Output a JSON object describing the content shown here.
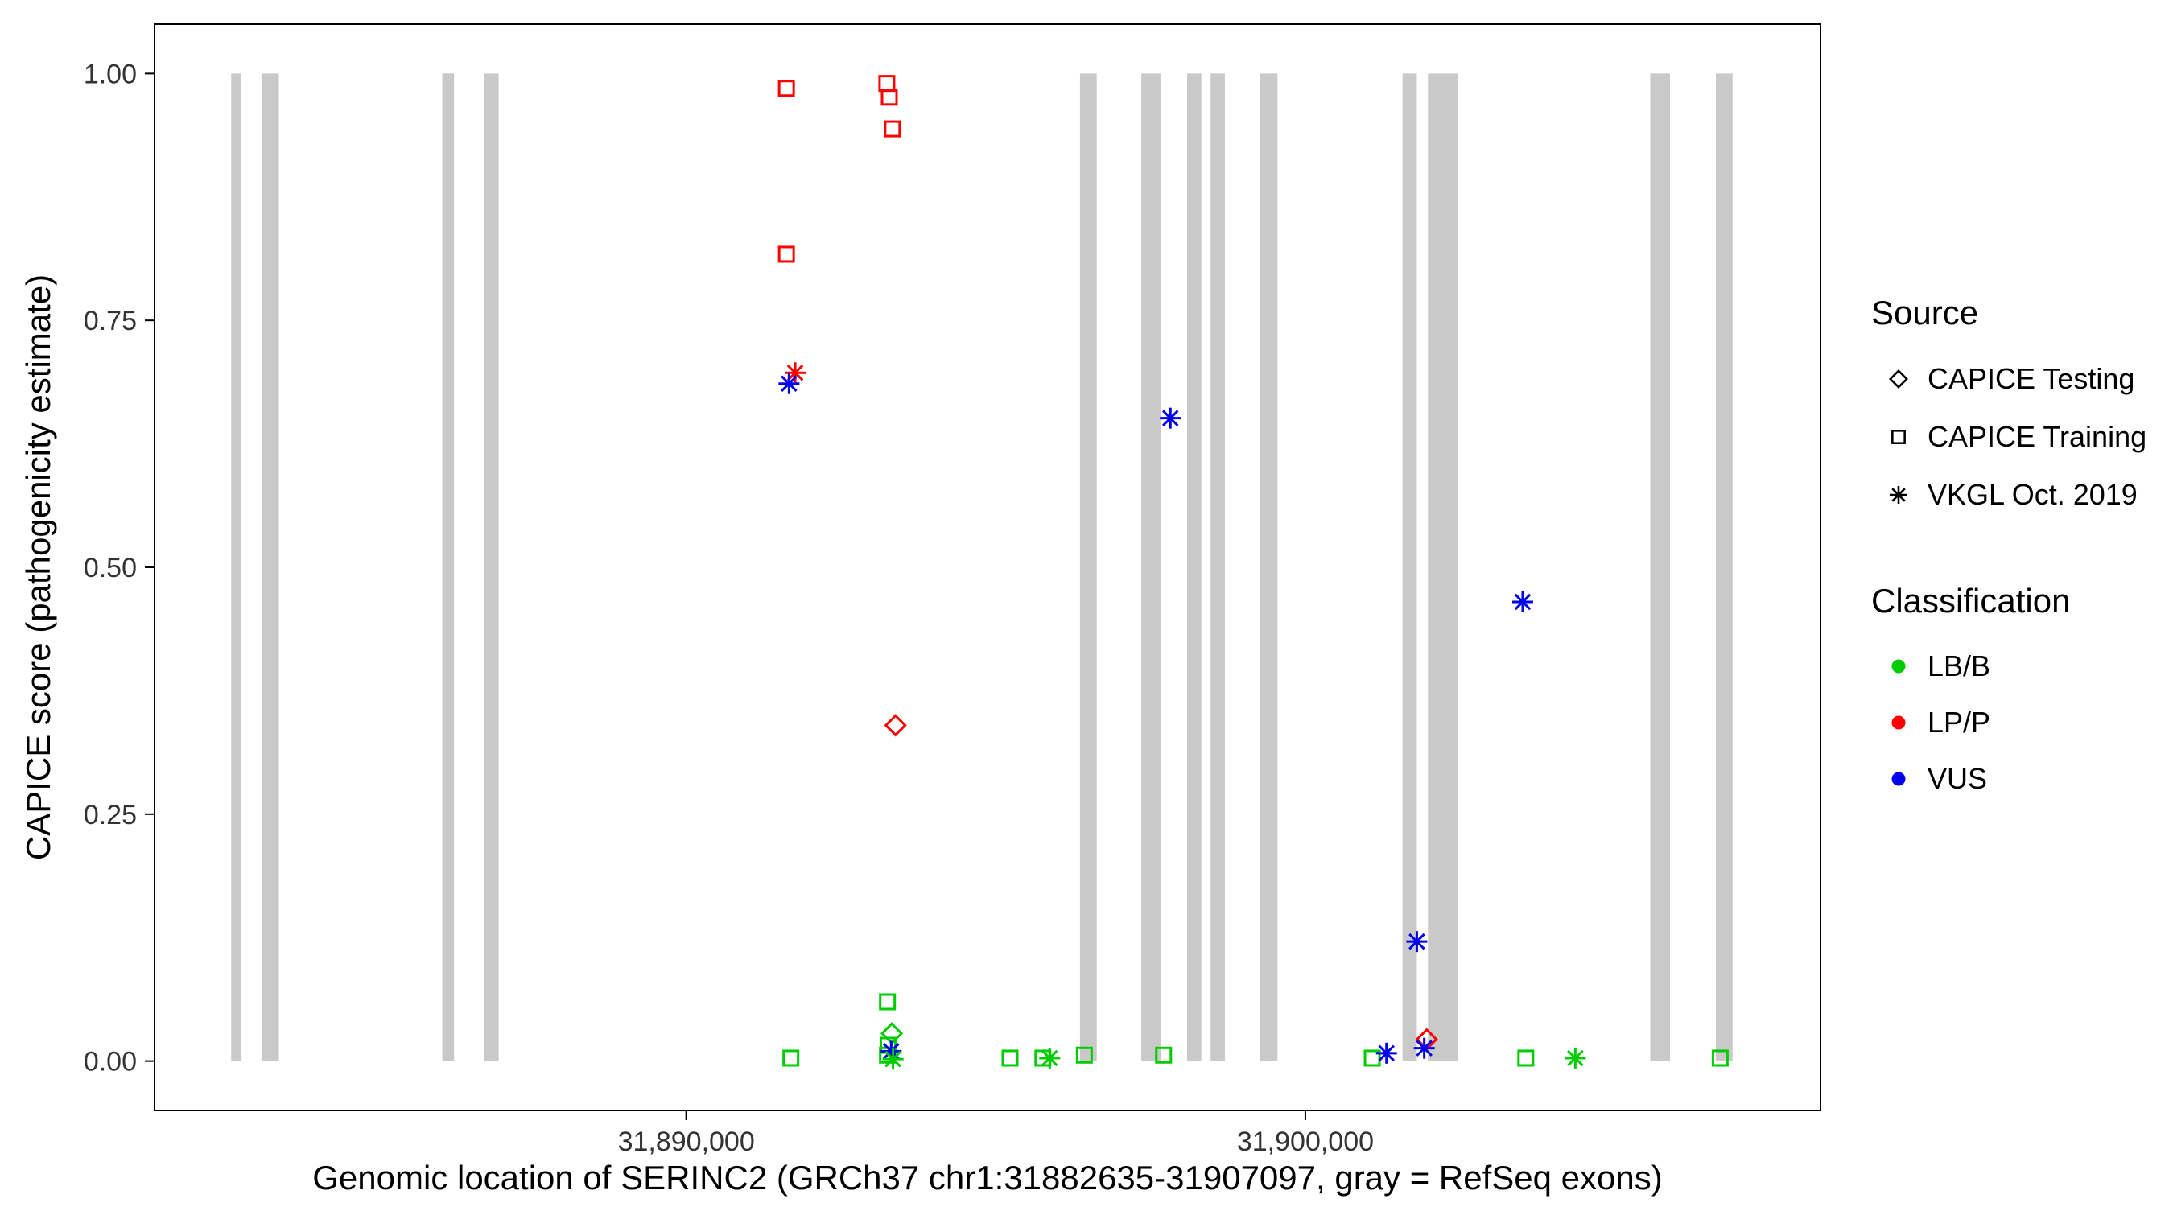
{
  "chart_data": {
    "type": "scatter",
    "title": "",
    "xlabel": "Genomic location of SERINC2 (GRCh37 chr1:31882635-31907097, gray = RefSeq exons)",
    "ylabel": "CAPICE score (pathogenicity estimate)",
    "xlim": [
      31881412,
      31908320
    ],
    "ylim": [
      -0.05,
      1.05
    ],
    "grid": "off",
    "x_ticks": [
      {
        "value": 31890000,
        "label": "31,890,000"
      },
      {
        "value": 31900000,
        "label": "31,900,000"
      }
    ],
    "y_ticks": [
      {
        "value": 0.0,
        "label": "0.00"
      },
      {
        "value": 0.25,
        "label": "0.25"
      },
      {
        "value": 0.5,
        "label": "0.50"
      },
      {
        "value": 0.75,
        "label": "0.75"
      },
      {
        "value": 1.0,
        "label": "1.00"
      }
    ],
    "exon_color": "#C9C9C9",
    "exons": [
      [
        31882650,
        31882810
      ],
      [
        31883140,
        31883420
      ],
      [
        31886060,
        31886250
      ],
      [
        31886740,
        31886970
      ],
      [
        31896360,
        31896630
      ],
      [
        31897350,
        31897660
      ],
      [
        31898090,
        31898320
      ],
      [
        31898470,
        31898700
      ],
      [
        31899260,
        31899550
      ],
      [
        31901570,
        31901800
      ],
      [
        31901980,
        31902470
      ],
      [
        31905570,
        31905890
      ],
      [
        31906630,
        31906900
      ]
    ],
    "sources": {
      "CAPICE Testing": "diamond",
      "CAPICE Training": "square",
      "VKGL Oct. 2019": "asterisk"
    },
    "classifications": {
      "LB/B": "#00CC00",
      "LP/P": "#FF0000",
      "VUS": "#0000EE"
    },
    "points": [
      {
        "x": 31891618,
        "y": 0.985,
        "source": "CAPICE Training",
        "classification": "LP/P"
      },
      {
        "x": 31891618,
        "y": 0.817,
        "source": "CAPICE Training",
        "classification": "LP/P"
      },
      {
        "x": 31893240,
        "y": 0.99,
        "source": "CAPICE Training",
        "classification": "LP/P"
      },
      {
        "x": 31893280,
        "y": 0.976,
        "source": "CAPICE Training",
        "classification": "LP/P"
      },
      {
        "x": 31893330,
        "y": 0.944,
        "source": "CAPICE Training",
        "classification": "LP/P"
      },
      {
        "x": 31891760,
        "y": 0.697,
        "source": "VKGL Oct. 2019",
        "classification": "LP/P"
      },
      {
        "x": 31891660,
        "y": 0.686,
        "source": "VKGL Oct. 2019",
        "classification": "VUS"
      },
      {
        "x": 31897820,
        "y": 0.651,
        "source": "VKGL Oct. 2019",
        "classification": "VUS"
      },
      {
        "x": 31903510,
        "y": 0.465,
        "source": "VKGL Oct. 2019",
        "classification": "VUS"
      },
      {
        "x": 31893380,
        "y": 0.34,
        "source": "CAPICE Testing",
        "classification": "LP/P"
      },
      {
        "x": 31901800,
        "y": 0.121,
        "source": "VKGL Oct. 2019",
        "classification": "VUS"
      },
      {
        "x": 31893250,
        "y": 0.06,
        "source": "CAPICE Training",
        "classification": "LB/B"
      },
      {
        "x": 31893320,
        "y": 0.028,
        "source": "CAPICE Testing",
        "classification": "LB/B"
      },
      {
        "x": 31893260,
        "y": 0.016,
        "source": "CAPICE Training",
        "classification": "LB/B"
      },
      {
        "x": 31893250,
        "y": 0.006,
        "source": "CAPICE Training",
        "classification": "LB/B"
      },
      {
        "x": 31893310,
        "y": 0.01,
        "source": "VKGL Oct. 2019",
        "classification": "VUS"
      },
      {
        "x": 31893340,
        "y": 0.002,
        "source": "VKGL Oct. 2019",
        "classification": "LB/B"
      },
      {
        "x": 31891690,
        "y": 0.003,
        "source": "CAPICE Training",
        "classification": "LB/B"
      },
      {
        "x": 31895230,
        "y": 0.003,
        "source": "CAPICE Training",
        "classification": "LB/B"
      },
      {
        "x": 31895760,
        "y": 0.003,
        "source": "CAPICE Training",
        "classification": "LB/B"
      },
      {
        "x": 31895870,
        "y": 0.003,
        "source": "VKGL Oct. 2019",
        "classification": "LB/B"
      },
      {
        "x": 31896430,
        "y": 0.006,
        "source": "CAPICE Training",
        "classification": "LB/B"
      },
      {
        "x": 31897710,
        "y": 0.006,
        "source": "CAPICE Training",
        "classification": "LB/B"
      },
      {
        "x": 31901080,
        "y": 0.003,
        "source": "CAPICE Training",
        "classification": "LB/B"
      },
      {
        "x": 31901310,
        "y": 0.008,
        "source": "VKGL Oct. 2019",
        "classification": "VUS"
      },
      {
        "x": 31901960,
        "y": 0.022,
        "source": "CAPICE Testing",
        "classification": "LP/P"
      },
      {
        "x": 31901920,
        "y": 0.013,
        "source": "VKGL Oct. 2019",
        "classification": "VUS"
      },
      {
        "x": 31903560,
        "y": 0.003,
        "source": "CAPICE Training",
        "classification": "LB/B"
      },
      {
        "x": 31904360,
        "y": 0.003,
        "source": "VKGL Oct. 2019",
        "classification": "LB/B"
      },
      {
        "x": 31906700,
        "y": 0.003,
        "source": "CAPICE Training",
        "classification": "LB/B"
      }
    ]
  },
  "legend": {
    "source_title": "Source",
    "source_items": [
      {
        "label": "CAPICE Testing",
        "shape": "diamond"
      },
      {
        "label": "CAPICE Training",
        "shape": "square"
      },
      {
        "label": "VKGL Oct. 2019",
        "shape": "asterisk"
      }
    ],
    "classification_title": "Classification",
    "classification_items": [
      {
        "label": "LB/B",
        "color": "#00CC00"
      },
      {
        "label": "LP/P",
        "color": "#FF0000"
      },
      {
        "label": "VUS",
        "color": "#0000EE"
      }
    ]
  }
}
